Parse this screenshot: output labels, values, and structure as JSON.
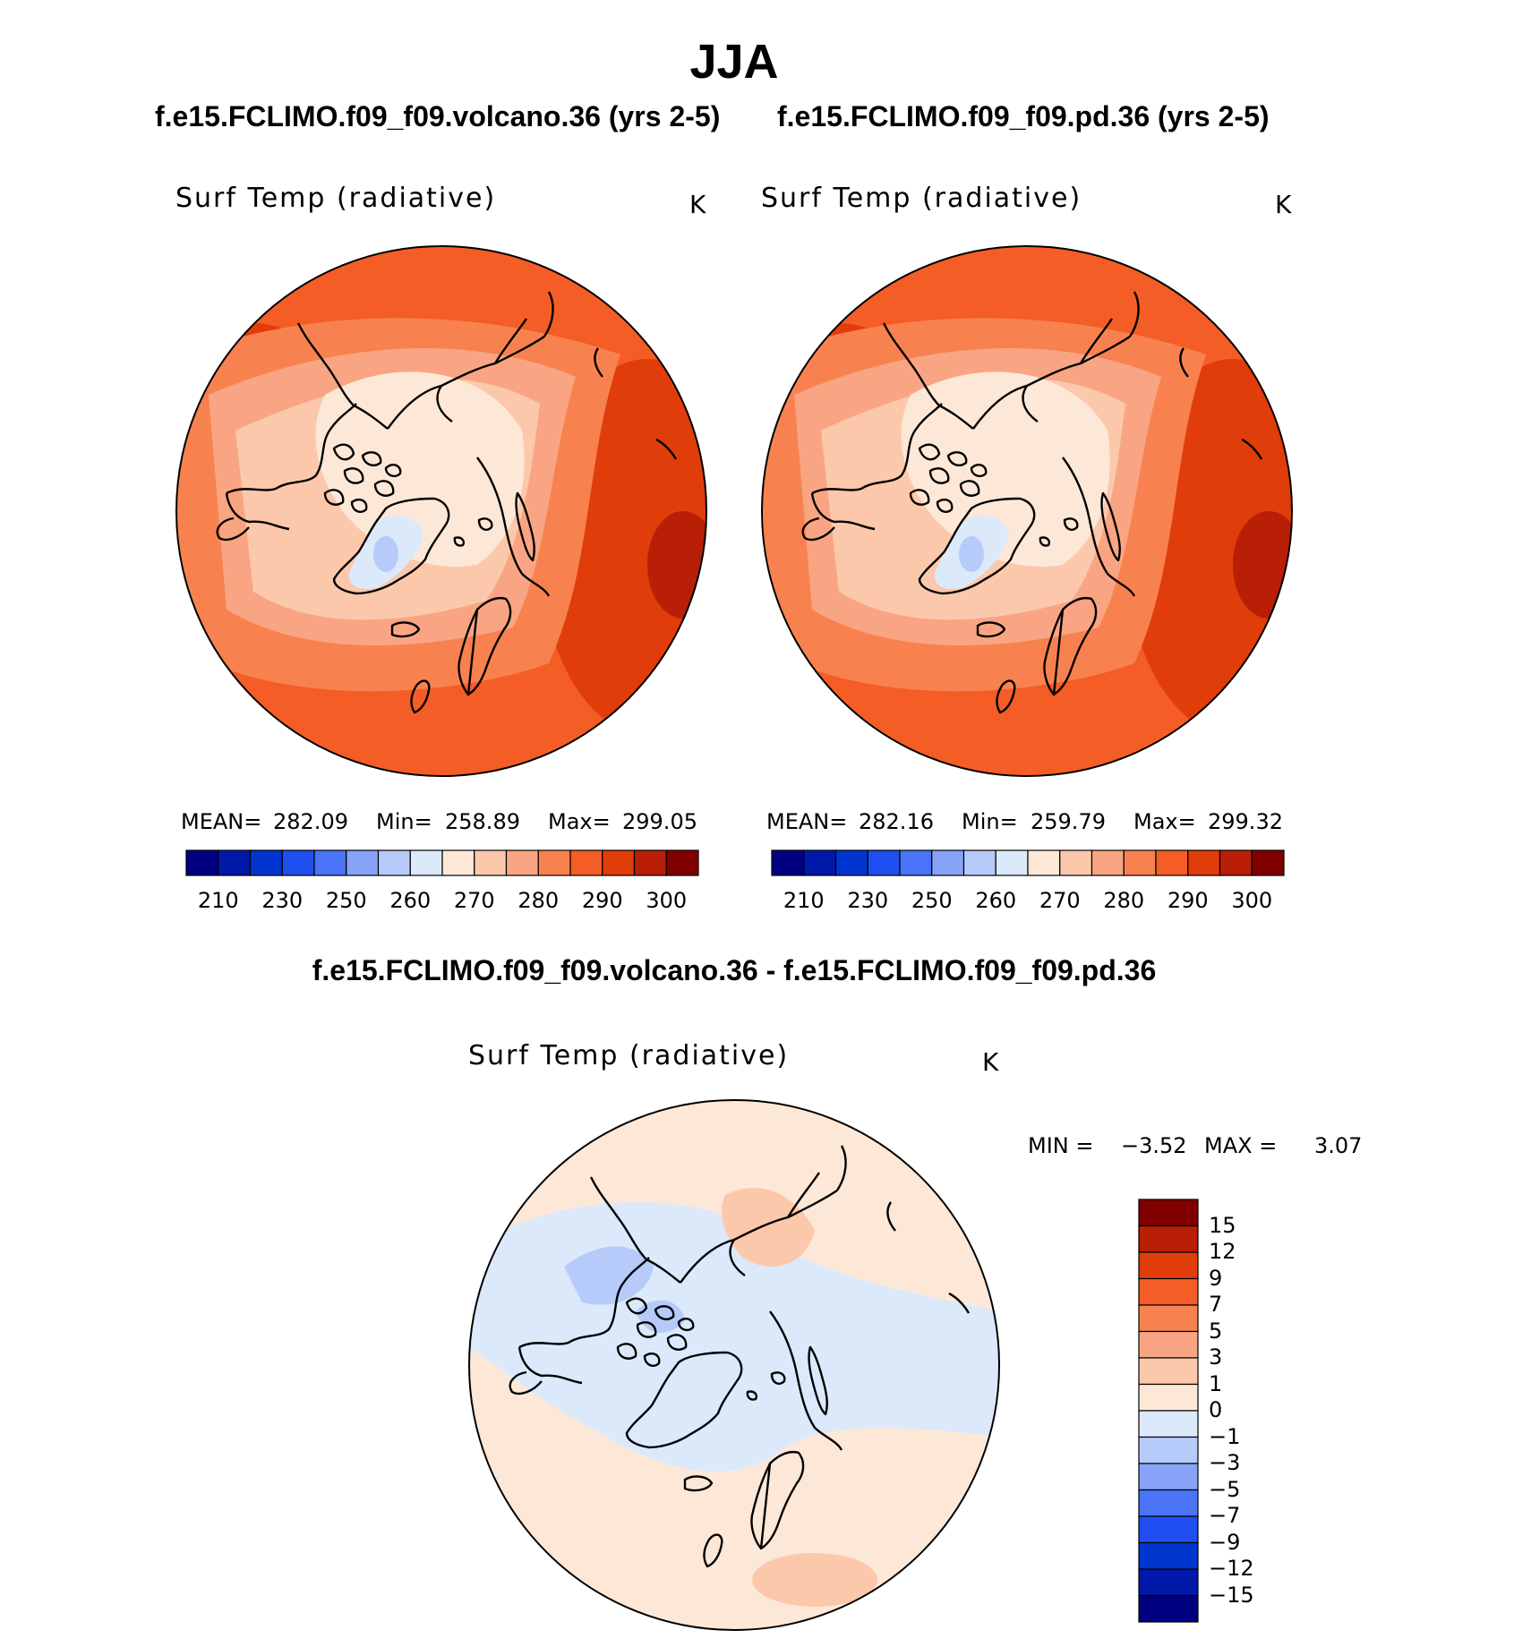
{
  "title": "JJA",
  "panels": [
    {
      "case_title": "f.e15.FCLIMO.f09_f09.volcano.36 (yrs 2-5)",
      "variable": "Surf Temp (radiative)",
      "units": "K",
      "stats": {
        "mean_label": "MEAN=",
        "mean": "282.09",
        "min_label": "Min=",
        "min": "258.89",
        "max_label": "Max=",
        "max": "299.05"
      }
    },
    {
      "case_title": "f.e15.FCLIMO.f09_f09.pd.36 (yrs 2-5)",
      "variable": "Surf Temp (radiative)",
      "units": "K",
      "stats": {
        "mean_label": "MEAN=",
        "mean": "282.16",
        "min_label": "Min=",
        "min": "259.79",
        "max_label": "Max=",
        "max": "299.32"
      }
    }
  ],
  "abs_colorbar": {
    "colors": [
      "#000080",
      "#0019a8",
      "#0035d0",
      "#1f4ff0",
      "#4a73f5",
      "#86a3f8",
      "#b6cbf9",
      "#dbe9fb",
      "#fde8d8",
      "#fcc8ab",
      "#f9a583",
      "#f8824f",
      "#f45d25",
      "#e03d0b",
      "#b81f06",
      "#800000"
    ],
    "tick_labels": [
      "210",
      "230",
      "250",
      "260",
      "270",
      "280",
      "290",
      "300"
    ]
  },
  "diff": {
    "title": "f.e15.FCLIMO.f09_f09.volcano.36 - f.e15.FCLIMO.f09_f09.pd.36",
    "variable": "Surf Temp (radiative)",
    "units": "K",
    "min_label": "MIN =",
    "min": "−3.52",
    "max_label": "MAX =",
    "max": "3.07",
    "colorbar": {
      "colors_top_to_bottom": [
        "#800000",
        "#b81f06",
        "#e03d0b",
        "#f45d25",
        "#f8824f",
        "#f9a583",
        "#fcc8ab",
        "#fde8d8",
        "#dbe9fb",
        "#b6cbf9",
        "#86a3f8",
        "#4a73f5",
        "#1f4ff0",
        "#0035d0",
        "#0019a8",
        "#000080"
      ],
      "tick_labels_top_to_bottom": [
        "15",
        "12",
        "9",
        "7",
        "5",
        "3",
        "1",
        "0",
        "−1",
        "−3",
        "−5",
        "−7",
        "−9",
        "−12",
        "−15"
      ]
    }
  }
}
